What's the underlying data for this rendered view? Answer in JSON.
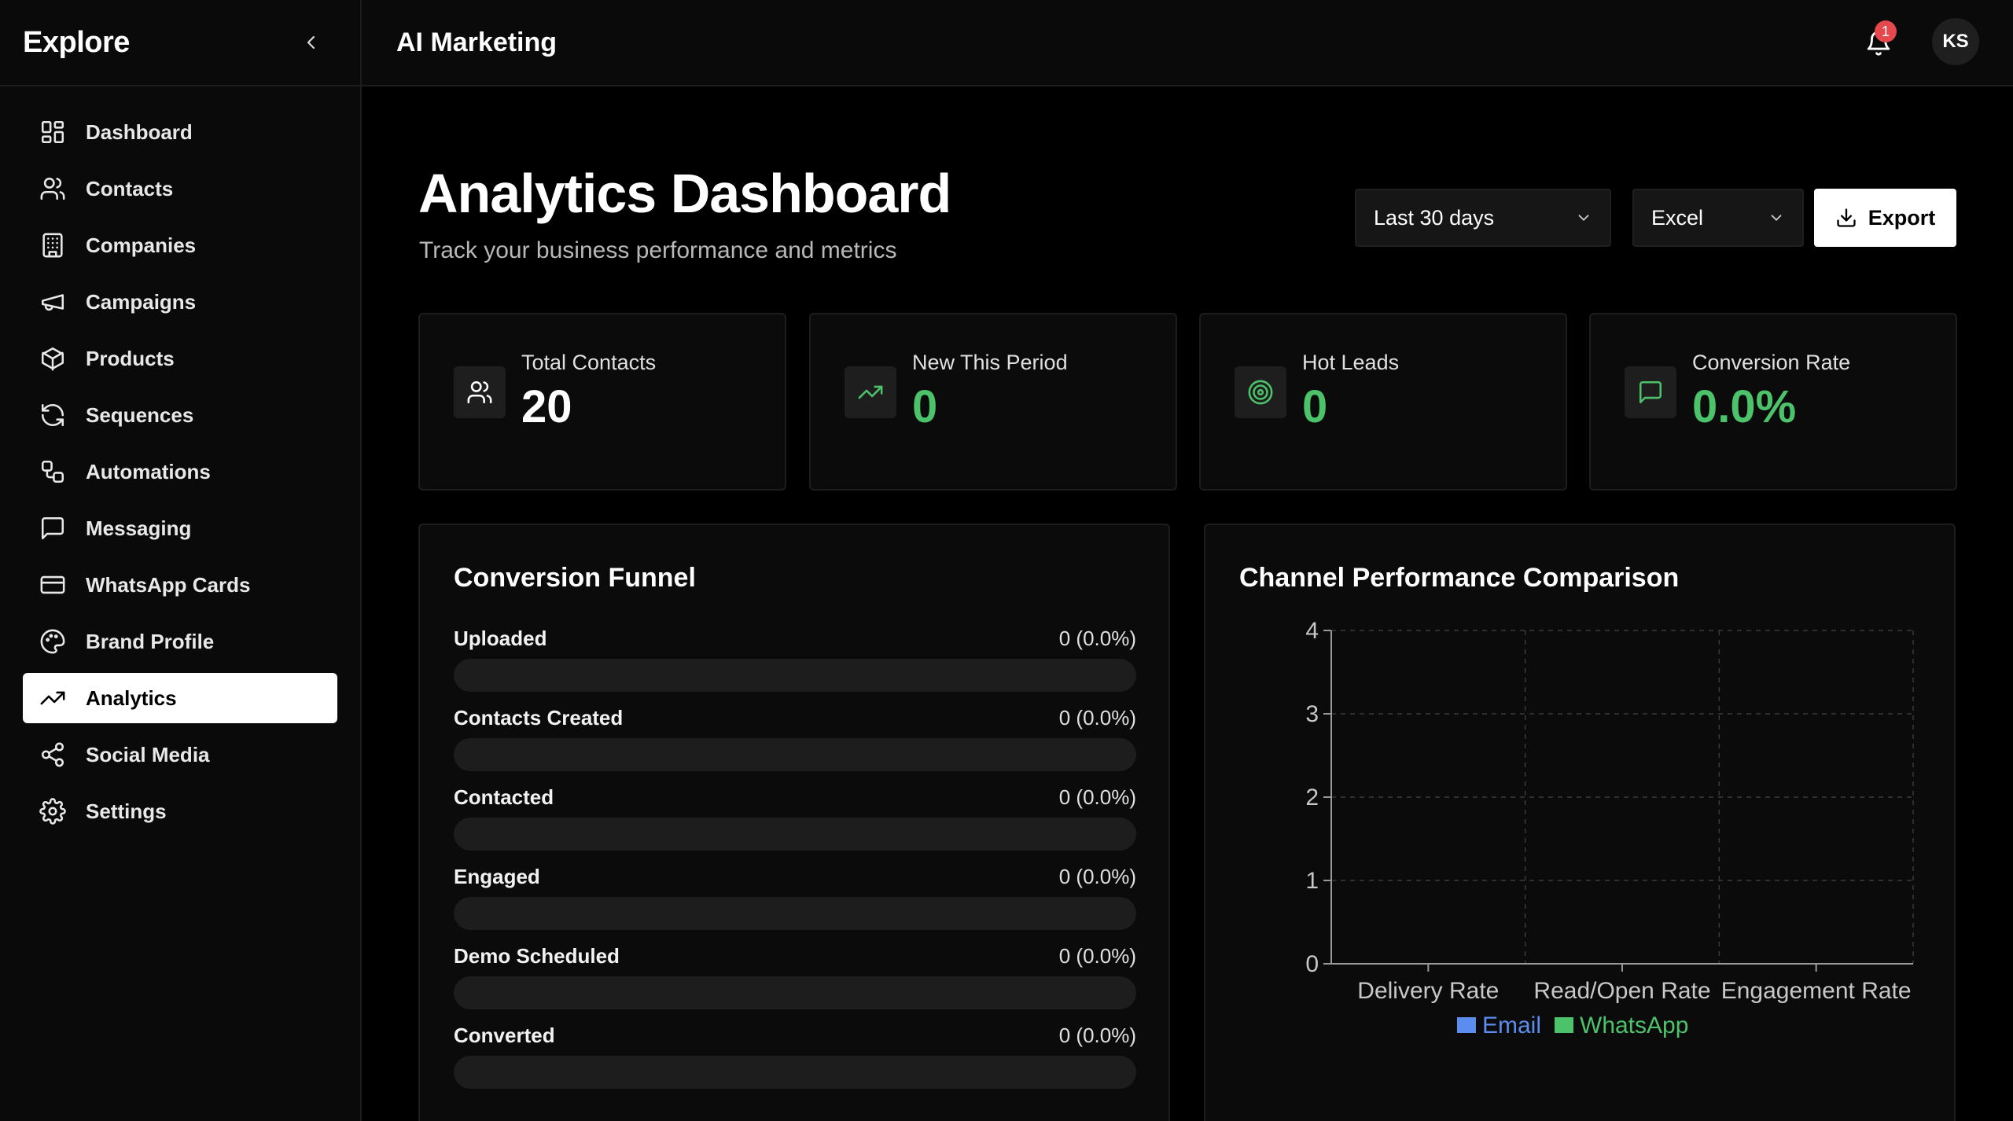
{
  "sidebar": {
    "brand": "Explore",
    "items": [
      {
        "label": "Dashboard",
        "icon": "dashboard-icon"
      },
      {
        "label": "Contacts",
        "icon": "users-icon"
      },
      {
        "label": "Companies",
        "icon": "building-icon"
      },
      {
        "label": "Campaigns",
        "icon": "megaphone-icon"
      },
      {
        "label": "Products",
        "icon": "package-icon"
      },
      {
        "label": "Sequences",
        "icon": "refresh-icon"
      },
      {
        "label": "Automations",
        "icon": "workflow-icon"
      },
      {
        "label": "Messaging",
        "icon": "message-icon"
      },
      {
        "label": "WhatsApp Cards",
        "icon": "card-icon"
      },
      {
        "label": "Brand Profile",
        "icon": "palette-icon"
      },
      {
        "label": "Analytics",
        "icon": "trending-up-icon",
        "active": true
      },
      {
        "label": "Social Media",
        "icon": "share-icon"
      },
      {
        "label": "Settings",
        "icon": "gear-icon"
      }
    ]
  },
  "topbar": {
    "title": "AI Marketing",
    "notifications": "1",
    "avatar": "KS"
  },
  "header": {
    "title": "Analytics Dashboard",
    "subtitle": "Track your business performance and metrics",
    "range_select": "Last 30 days",
    "format_select": "Excel",
    "export_label": "Export"
  },
  "stats": [
    {
      "label": "Total Contacts",
      "value": "20",
      "icon": "users-icon",
      "accent": "#ffffff"
    },
    {
      "label": "New This Period",
      "value": "0",
      "icon": "trending-up-icon",
      "accent": "#4cc26a"
    },
    {
      "label": "Hot Leads",
      "value": "0",
      "icon": "target-icon",
      "accent": "#4cc26a"
    },
    {
      "label": "Conversion Rate",
      "value": "0.0%",
      "icon": "message-icon",
      "accent": "#4cc26a"
    }
  ],
  "funnel": {
    "title": "Conversion Funnel",
    "stages": [
      {
        "label": "Uploaded",
        "count": "0 (0.0%)",
        "fraction": 0
      },
      {
        "label": "Contacts Created",
        "count": "0 (0.0%)",
        "fraction": 0
      },
      {
        "label": "Contacted",
        "count": "0 (0.0%)",
        "fraction": 0
      },
      {
        "label": "Engaged",
        "count": "0 (0.0%)",
        "fraction": 0
      },
      {
        "label": "Demo Scheduled",
        "count": "0 (0.0%)",
        "fraction": 0
      },
      {
        "label": "Converted",
        "count": "0 (0.0%)",
        "fraction": 0
      }
    ]
  },
  "channel": {
    "title": "Channel Performance Comparison"
  },
  "chart_data": {
    "type": "bar",
    "title": "Channel Performance Comparison",
    "categories": [
      "Delivery Rate",
      "Read/Open Rate",
      "Engagement Rate"
    ],
    "series": [
      {
        "name": "Email",
        "values": [
          0,
          0,
          0
        ],
        "color": "#5b8def"
      },
      {
        "name": "WhatsApp",
        "values": [
          0,
          0,
          0
        ],
        "color": "#4cc26a"
      }
    ],
    "yticks": [
      "0",
      "1",
      "2",
      "3",
      "4"
    ],
    "ylim": [
      0,
      4
    ],
    "grid": true,
    "legend": "bottom-center"
  },
  "colors": {
    "accent_green": "#4cc26a",
    "email_blue": "#5b8def",
    "badge_red": "#e5484d"
  }
}
